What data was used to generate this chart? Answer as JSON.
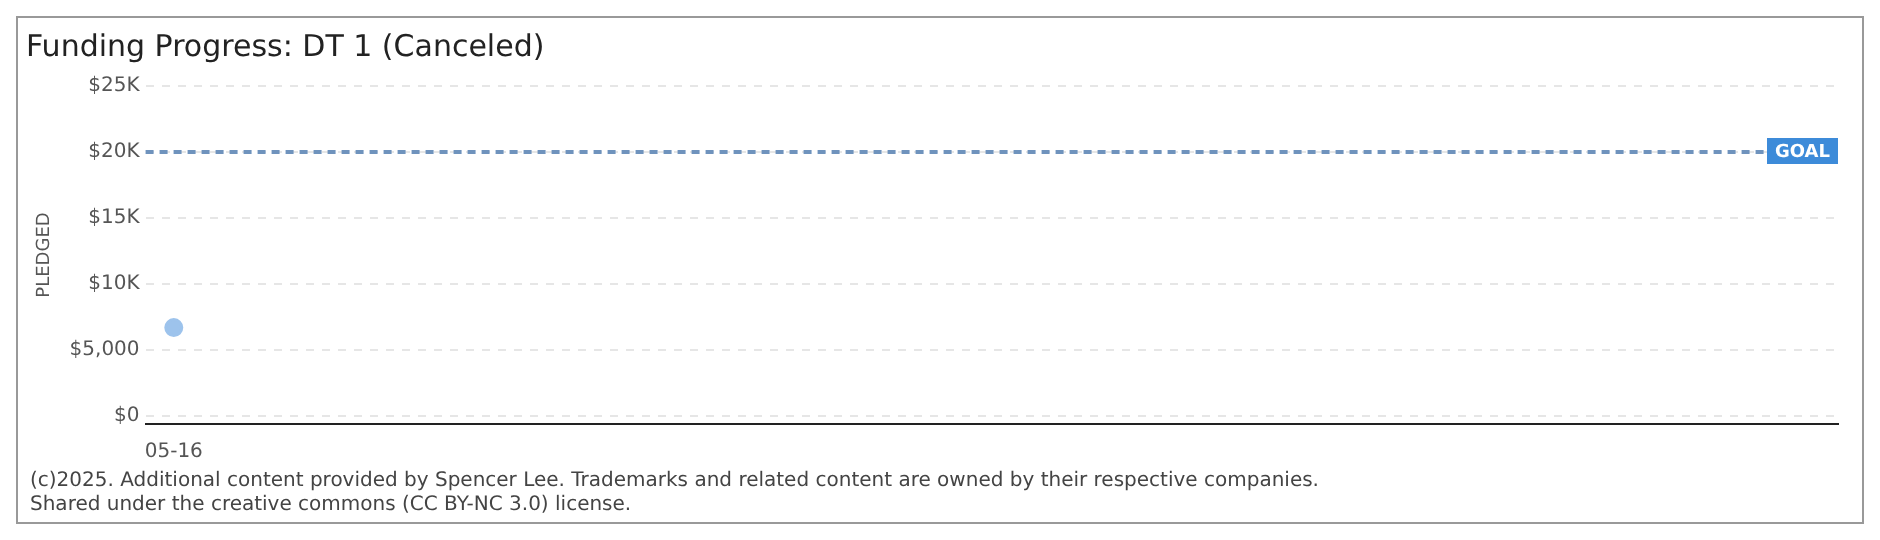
{
  "chart_data": {
    "type": "line",
    "title": "Funding Progress: DT 1 (Canceled)",
    "ylabel": "PLEDGED",
    "categories": [
      "05-16",
      null,
      null,
      null,
      null,
      null,
      null,
      null,
      null,
      null,
      null,
      null,
      null,
      null,
      null,
      null,
      null,
      null,
      null,
      null,
      null,
      null,
      null,
      null,
      null,
      null,
      null,
      null,
      null,
      null
    ],
    "series": [
      {
        "color": "#9dc3ec",
        "values": [
          6700,
          null,
          null,
          null,
          null,
          null,
          null,
          null,
          null,
          null,
          null,
          null,
          null,
          null,
          null,
          null,
          null,
          null,
          null,
          null,
          null,
          null,
          null,
          null,
          null,
          null,
          null,
          null,
          null,
          null
        ]
      }
    ],
    "ylim": [
      -600,
      25000
    ],
    "yticks": [
      {
        "value": 0,
        "label": "$0"
      },
      {
        "value": 5000,
        "label": "$5,000"
      },
      {
        "value": 10000,
        "label": "$10K"
      },
      {
        "value": 15000,
        "label": "$15K"
      },
      {
        "value": 20000,
        "label": "$20K"
      },
      {
        "value": 25000,
        "label": "$25K"
      }
    ],
    "ref_lines": [
      {
        "axis": "y",
        "value": 20000,
        "label": "GOAL",
        "color": "#6f93bd",
        "line_style": "dashed"
      }
    ],
    "grid": "y",
    "legend": false,
    "marker": "circle",
    "annotations": [
      "(c)2025. Additional content provided by Spencer Lee. Trademarks and related content are owned by their respective companies.",
      "Shared under the creative commons (CC BY-NC 3.0) license."
    ]
  }
}
